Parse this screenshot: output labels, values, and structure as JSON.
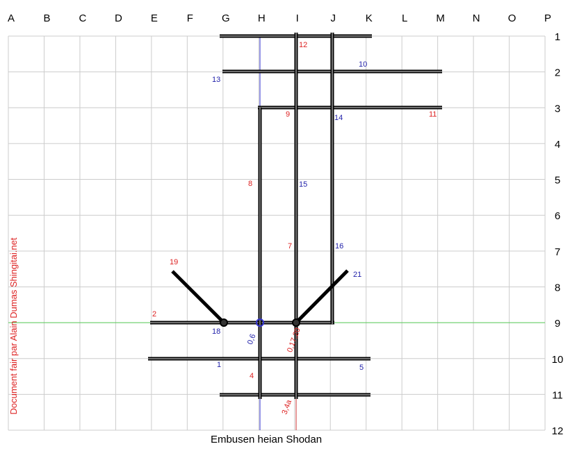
{
  "columns": [
    "A",
    "B",
    "C",
    "D",
    "E",
    "F",
    "G",
    "H",
    "I",
    "J",
    "K",
    "L",
    "M",
    "N",
    "O",
    "P"
  ],
  "rows": [
    "1",
    "2",
    "3",
    "4",
    "5",
    "6",
    "7",
    "8",
    "9",
    "10",
    "11",
    "12"
  ],
  "steps": {
    "red": [
      "12",
      "9",
      "11",
      "8",
      "7",
      "19",
      "2",
      "4",
      "0,17,20",
      "3,4a"
    ],
    "blue": [
      "13",
      "10",
      "14",
      "15",
      "16",
      "21",
      "18",
      "0,6",
      "1",
      "5"
    ]
  },
  "footer": "Embusen heian Shodan",
  "credit": "Document fair par Alain Dumas Shingitai.net"
}
